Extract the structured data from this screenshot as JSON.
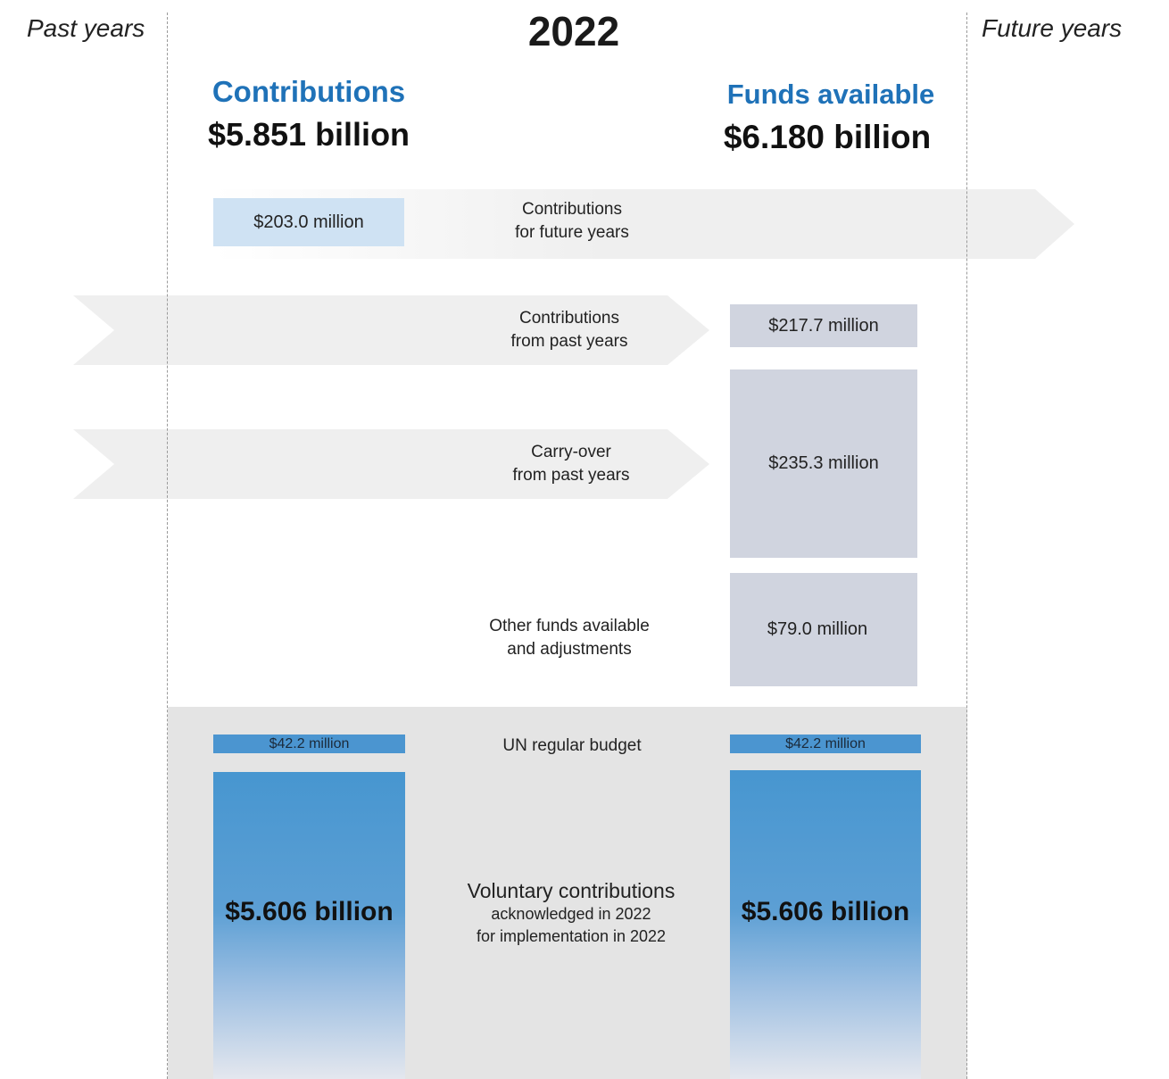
{
  "header": {
    "year": "2022",
    "past_label": "Past years",
    "future_label": "Future years"
  },
  "contributions": {
    "title": "Contributions",
    "total": "$5.851 billion"
  },
  "funds_available": {
    "title": "Funds available",
    "total": "$6.180 billion"
  },
  "rows": {
    "future_years": {
      "label_line1": "Contributions",
      "label_line2": "for future years",
      "contributions_value": "$203.0 million"
    },
    "past_years": {
      "label_line1": "Contributions",
      "label_line2": "from past years",
      "funds_value": "$217.7 million"
    },
    "carry_over": {
      "label_line1": "Carry-over",
      "label_line2": "from past years",
      "funds_value": "$235.3 million"
    },
    "other_funds": {
      "label_line1": "Other funds available",
      "label_line2": "and adjustments",
      "funds_value": "$79.0 million"
    },
    "un_regular_budget": {
      "label": "UN regular budget",
      "contributions_value": "$42.2 million",
      "funds_value": "$42.2 million"
    },
    "voluntary": {
      "label_line1": "Voluntary contributions",
      "label_line2": "acknowledged in 2022",
      "label_line3": "for implementation in 2022",
      "contributions_value": "$5.606 billion",
      "funds_value": "$5.606 billion"
    }
  },
  "colors": {
    "accent_blue": "#1f72b8",
    "bar_blue": "#4b95d0",
    "light_blue_box": "#cfe2f3",
    "grey_box": "#d0d4df",
    "flow_arrow": "#efefef",
    "band": "#e4e4e4"
  }
}
